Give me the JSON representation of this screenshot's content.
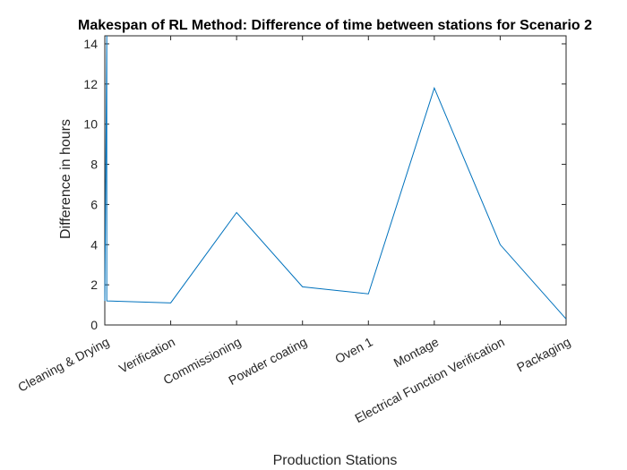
{
  "chart_data": {
    "type": "line",
    "title": "Makespan of RL Method: Difference of time between stations for Scenario 2",
    "xlabel": "Production Stations",
    "ylabel": "Difference in hours",
    "categories": [
      "Cleaning & Drying",
      "Verification",
      "Commissioning",
      "Powder coating",
      "Oven 1",
      "Montage",
      "Electrical Function Verification",
      "Packaging"
    ],
    "x": [
      1,
      2,
      3,
      4,
      5,
      6,
      7,
      8
    ],
    "y_ticks": [
      0,
      2,
      4,
      6,
      8,
      10,
      12,
      14
    ],
    "ylim": [
      0,
      14.4
    ],
    "xlim": [
      1,
      8
    ],
    "grid": false,
    "colors": {
      "series": "#0072BD",
      "axis": "#262626"
    },
    "series": [
      {
        "points": [
          {
            "x": 1.0,
            "y": 1.2
          },
          {
            "x": 1.03,
            "y": 14.4
          },
          {
            "x": 1.03,
            "y": 1.2
          },
          {
            "x": 2,
            "y": 1.1
          },
          {
            "x": 3,
            "y": 5.6
          },
          {
            "x": 4,
            "y": 1.9
          },
          {
            "x": 5,
            "y": 1.55
          },
          {
            "x": 6,
            "y": 11.8
          },
          {
            "x": 7,
            "y": 4.0
          },
          {
            "x": 8,
            "y": 0.3
          }
        ]
      }
    ]
  }
}
